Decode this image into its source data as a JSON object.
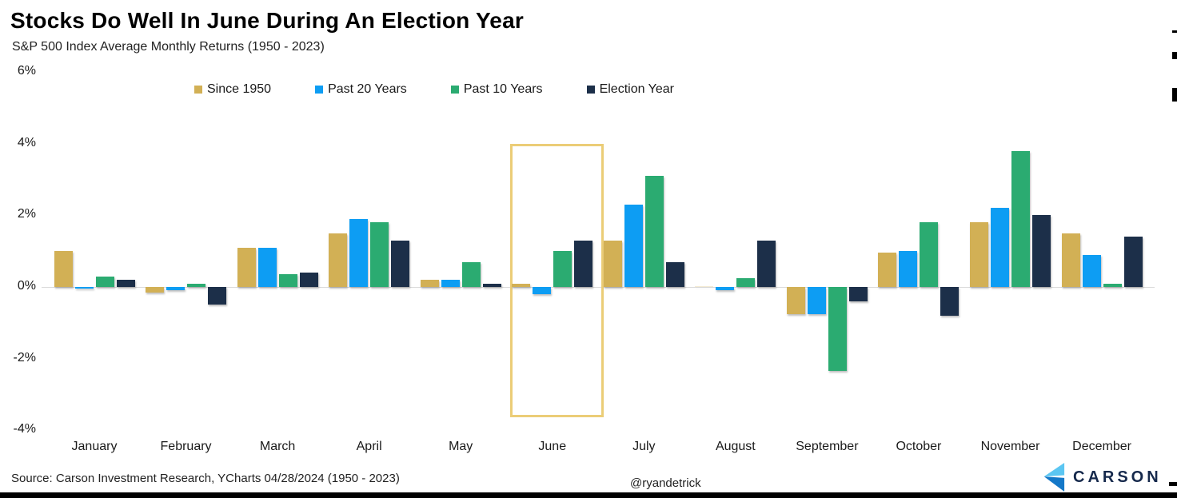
{
  "chart_data": {
    "type": "bar",
    "title": "Stocks Do Well In June During An Election Year",
    "subtitle": "S&P 500 Index Average Monthly Returns (1950 - 2023)",
    "units": "%",
    "categories": [
      "January",
      "February",
      "March",
      "April",
      "May",
      "June",
      "July",
      "August",
      "September",
      "October",
      "November",
      "December"
    ],
    "series": [
      {
        "name": "Since 1950",
        "color": "#D2B055",
        "values": [
          1.0,
          -0.15,
          1.1,
          1.5,
          0.2,
          0.1,
          1.3,
          0.0,
          -0.75,
          0.95,
          1.8,
          1.5
        ]
      },
      {
        "name": "Past 20 Years",
        "color": "#0D9DF3",
        "values": [
          -0.05,
          -0.1,
          1.1,
          1.9,
          0.2,
          -0.2,
          2.3,
          -0.1,
          -0.75,
          1.0,
          2.2,
          0.9
        ]
      },
      {
        "name": "Past 10 Years",
        "color": "#2BAB71",
        "values": [
          0.3,
          0.1,
          0.35,
          1.8,
          0.7,
          1.0,
          3.1,
          0.25,
          -2.35,
          1.8,
          3.8,
          0.1
        ]
      },
      {
        "name": "Election Year",
        "color": "#1C2F49",
        "values": [
          0.2,
          -0.5,
          0.4,
          1.3,
          0.1,
          1.3,
          0.7,
          1.3,
          -0.4,
          -0.8,
          2.0,
          1.4
        ]
      }
    ],
    "ylim": [
      -4,
      6
    ],
    "yticks": [
      {
        "label": "6%",
        "value": 6
      },
      {
        "label": "4%",
        "value": 4
      },
      {
        "label": "2%",
        "value": 2
      },
      {
        "label": "0%",
        "value": 0
      },
      {
        "label": "-2%",
        "value": -2
      },
      {
        "label": "-4%",
        "value": -4
      }
    ],
    "grid": "zero-line-only",
    "legend_position": "top",
    "highlight": {
      "category": "June",
      "color": "#EBCD77",
      "range": [
        4,
        -3.5
      ],
      "note": "gold outline box around June bar group"
    }
  },
  "footer": {
    "source": "Source: Carson Investment Research, YCharts 04/28/2024 (1950 - 2023)",
    "handle": "@ryandetrick",
    "brand": "CARSON"
  },
  "colors": {
    "background": "#FFFFFF",
    "zero_line": "#DBDBDB",
    "bottom_bar": "#000000",
    "brand_text": "#16294C",
    "logo_light_blue": "#5BC6F2",
    "logo_dark_blue": "#1478C8",
    "highlight_box": "#EBCD77"
  }
}
